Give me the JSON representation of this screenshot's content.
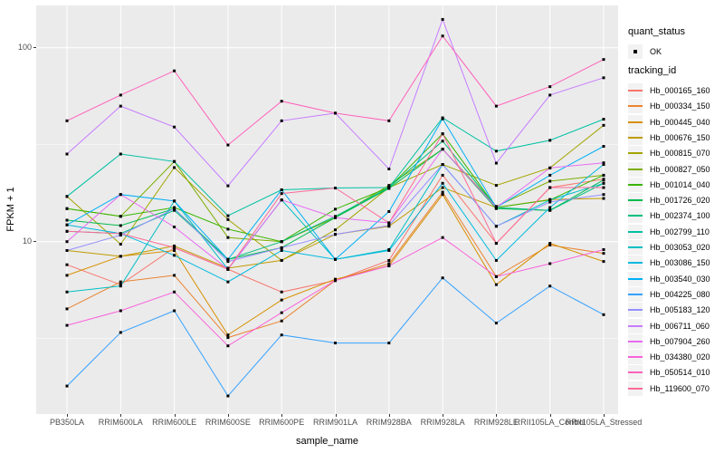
{
  "legend": {
    "position": "right",
    "quant_status": {
      "title": "quant_status",
      "items": [
        {
          "label": "OK",
          "marker": "black-square-point"
        }
      ]
    },
    "tracking_id": {
      "title": "tracking_id"
    }
  },
  "chart_data": {
    "type": "line",
    "title": "",
    "xlabel": "sample_name",
    "ylabel": "FPKM + 1",
    "y_scale": "log10",
    "ylim": [
      1.29,
      165
    ],
    "y_tick_labels": [
      "100",
      "10"
    ],
    "y_tick_values": [
      100,
      10
    ],
    "y_minor_gridlines": [
      31.623,
      3.162
    ],
    "grid": true,
    "panel_background": "#EBEBEB",
    "gridline_color": "#FFFFFF",
    "point_marker": {
      "shape": "square",
      "color": "#000000",
      "size": 3
    },
    "legend_position": "right",
    "categories": [
      "PB350LA",
      "RRIM600LA",
      "RRIM600LE",
      "RRIM600SE",
      "RRIM600PE",
      "RRIM901LA",
      "RRIM928BA",
      "RRIM928LA",
      "RRIM928LE",
      "RRII105LA_Control",
      "RRII105LA_Stressed"
    ],
    "series": [
      {
        "name": "Hb_000165_160",
        "color": "#F8766D",
        "values": [
          7.6,
          6.0,
          9.3,
          7.2,
          5.5,
          6.3,
          8.0,
          22.0,
          9.8,
          19.0,
          21.0
        ]
      },
      {
        "name": "Hb_000334_150",
        "color": "#EA8331",
        "values": [
          4.5,
          6.2,
          6.7,
          3.2,
          3.9,
          6.3,
          7.7,
          18.0,
          6.6,
          9.6,
          8.7
        ]
      },
      {
        "name": "Hb_000445_040",
        "color": "#D89000",
        "values": [
          6.7,
          8.4,
          9.0,
          3.3,
          5.0,
          6.4,
          7.5,
          17.5,
          6.0,
          9.8,
          7.9
        ]
      },
      {
        "name": "Hb_000676_150",
        "color": "#C09B00",
        "values": [
          9.0,
          8.4,
          9.5,
          7.3,
          8.0,
          10.9,
          12.0,
          19.0,
          15.0,
          16.5,
          16.7
        ]
      },
      {
        "name": "Hb_000815_070",
        "color": "#A3A500",
        "values": [
          17.1,
          9.7,
          24.1,
          13.0,
          8.0,
          11.5,
          19.0,
          25.0,
          19.5,
          24.0,
          39.8
        ]
      },
      {
        "name": "Hb_000827_050",
        "color": "#7CAE00",
        "values": [
          14.8,
          13.5,
          25.9,
          10.5,
          10.0,
          13.3,
          19.5,
          30.0,
          15.2,
          20.5,
          22.0
        ]
      },
      {
        "name": "Hb_001014_040",
        "color": "#39B600",
        "values": [
          14.8,
          13.5,
          15.0,
          11.6,
          10.0,
          14.7,
          19.0,
          36.0,
          15.0,
          16.4,
          22.0
        ]
      },
      {
        "name": "Hb_001726_020",
        "color": "#00BB4E",
        "values": [
          12.9,
          12.1,
          14.8,
          8.1,
          9.3,
          13.3,
          18.8,
          30.0,
          14.8,
          14.5,
          20.8
        ]
      },
      {
        "name": "Hb_002374_100",
        "color": "#00BF7D",
        "values": [
          11.3,
          11.0,
          14.5,
          8.1,
          10.0,
          13.5,
          19.0,
          33.0,
          15.0,
          14.5,
          20.0
        ]
      },
      {
        "name": "Hb_002799_110",
        "color": "#00C1A3",
        "values": [
          17.1,
          28.3,
          25.9,
          13.6,
          18.5,
          18.9,
          19.0,
          43.5,
          29.3,
          33.3,
          42.8
        ]
      },
      {
        "name": "Hb_003053_020",
        "color": "#00BFC4",
        "values": [
          5.5,
          5.9,
          16.2,
          7.2,
          16.4,
          8.1,
          9.1,
          25.0,
          12.0,
          16.4,
          20.0
        ]
      },
      {
        "name": "Hb_003086_150",
        "color": "#00BAE0",
        "values": [
          12.2,
          11.0,
          8.5,
          6.2,
          9.0,
          8.1,
          9.0,
          20.0,
          8.0,
          15.0,
          25.0
        ]
      },
      {
        "name": "Hb_003540_030",
        "color": "#00B0F6",
        "values": [
          12.2,
          17.5,
          16.2,
          8.1,
          18.5,
          8.1,
          14.3,
          43.0,
          15.0,
          22.0,
          31.0
        ]
      },
      {
        "name": "Hb_004225_080",
        "color": "#35A2FF",
        "values": [
          1.8,
          3.4,
          4.4,
          1.6,
          3.3,
          3.0,
          3.0,
          6.5,
          3.8,
          5.9,
          4.2
        ]
      },
      {
        "name": "Hb_005183_120",
        "color": "#9590FF",
        "values": [
          9.0,
          10.8,
          14.8,
          7.9,
          9.3,
          10.9,
          12.1,
          25.0,
          12.0,
          16.0,
          17.5
        ]
      },
      {
        "name": "Hb_006711_060",
        "color": "#C77CFF",
        "values": [
          28.3,
          50.0,
          39.0,
          19.4,
          42.0,
          46.0,
          23.7,
          140.0,
          25.4,
          57.0,
          70.0
        ]
      },
      {
        "name": "Hb_007904_260",
        "color": "#E76BF3",
        "values": [
          10.0,
          17.5,
          11.9,
          7.2,
          16.4,
          13.3,
          12.5,
          30.0,
          15.0,
          24.0,
          25.5
        ]
      },
      {
        "name": "Hb_034380_020",
        "color": "#FA62DB",
        "values": [
          3.7,
          4.4,
          5.5,
          2.9,
          4.3,
          6.3,
          7.5,
          10.5,
          6.6,
          7.7,
          9.1
        ]
      },
      {
        "name": "Hb_050514_010",
        "color": "#FF62BC",
        "values": [
          42.0,
          57.0,
          76.0,
          31.5,
          53.0,
          46.0,
          42.0,
          115.0,
          50.0,
          63.0,
          87.0
        ]
      },
      {
        "name": "Hb_119600_070",
        "color": "#FF6A98",
        "values": [
          11.3,
          11.0,
          9.3,
          7.2,
          17.7,
          18.9,
          12.5,
          36.0,
          9.8,
          19.0,
          19.0
        ]
      }
    ]
  }
}
